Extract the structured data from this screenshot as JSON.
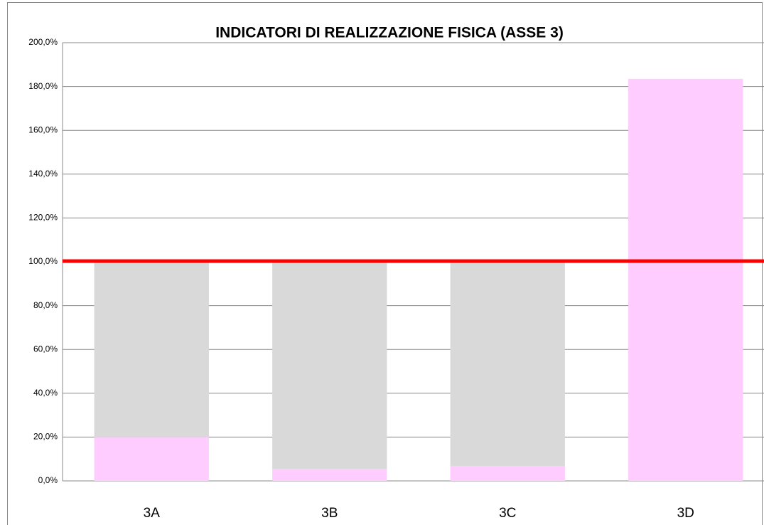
{
  "chart_data": {
    "type": "stacked_bar",
    "title": "INDICATORI DI  REALIZZAZIONE FISICA (ASSE 3)",
    "categories": [
      "3A",
      "3B",
      "3C",
      "3D"
    ],
    "series": [
      {
        "color": "#ffccff",
        "values": [
          20,
          5.5,
          6.8,
          183.5
        ]
      },
      {
        "color": "#d9d9d9",
        "values": [
          80,
          94.5,
          93.2,
          0
        ]
      }
    ],
    "reference_line": {
      "value": 100,
      "color": "#ff0000"
    },
    "ylim": [
      0,
      200
    ],
    "yticks": [
      {
        "value": 0,
        "label": "0,0%"
      },
      {
        "value": 20,
        "label": "20,0%"
      },
      {
        "value": 40,
        "label": "40,0%"
      },
      {
        "value": 60,
        "label": "60,0%"
      },
      {
        "value": 80,
        "label": "80,0%"
      },
      {
        "value": 100,
        "label": "100,0%"
      },
      {
        "value": 120,
        "label": "120,0%"
      },
      {
        "value": 140,
        "label": "140,0%"
      },
      {
        "value": 160,
        "label": "160,0%"
      },
      {
        "value": 180,
        "label": "180,0%"
      },
      {
        "value": 200,
        "label": "200,0%"
      }
    ],
    "grid": true
  }
}
